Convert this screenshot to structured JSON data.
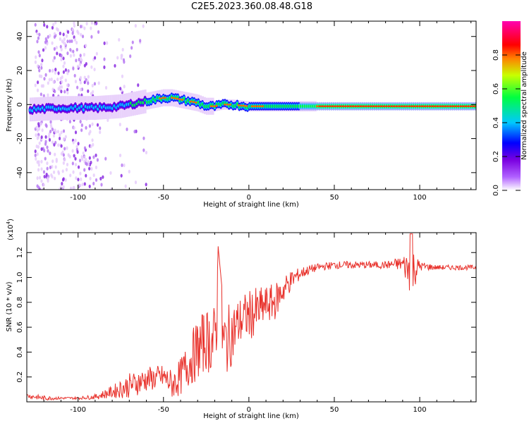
{
  "title": "C2E5.2023.360.08.48.G18",
  "chart_data": [
    {
      "type": "heatmap",
      "xlabel": "Height of straight line (km)",
      "ylabel": "Frequency (Hz)",
      "xlim": [
        -130,
        133
      ],
      "ylim": [
        -50,
        49
      ],
      "x_ticks": [
        -100,
        -50,
        0,
        50,
        100
      ],
      "y_ticks": [
        -40,
        -20,
        0,
        20,
        40
      ],
      "ridge": {
        "x": [
          -130,
          -110,
          -90,
          -75,
          -65,
          -55,
          -50,
          -45,
          -40,
          -35,
          -30,
          -25,
          -20,
          -15,
          -10,
          0,
          10,
          20,
          30,
          40,
          60,
          80,
          100,
          133
        ],
        "frequency": [
          -3,
          -2,
          -2,
          -1,
          1,
          3,
          4,
          4,
          3,
          2,
          1,
          -1,
          -1,
          0,
          0,
          -1,
          -1,
          -1,
          -1,
          -1,
          -1,
          -1,
          -1,
          -1
        ]
      },
      "colorbar": {
        "label": "Normalized spectral amplitude",
        "ticks": [
          0.0,
          0.2,
          0.4,
          0.6,
          0.8
        ],
        "range": [
          0,
          1
        ],
        "colormap": [
          "#ffffff",
          "#8b00ff",
          "#0000ff",
          "#00ffff",
          "#00ff00",
          "#ffff00",
          "#ff0000",
          "#ff00ff"
        ]
      }
    },
    {
      "type": "line",
      "xlabel": "Height of straight line (km)",
      "ylabel": "SNR (10 * v/v)",
      "y_multiplier": "(x10",
      "y_multiplier_exp": "4",
      "y_multiplier_close": ")",
      "xlim": [
        -130,
        133
      ],
      "ylim": [
        0.0,
        1.36
      ],
      "x_ticks": [
        -100,
        -50,
        0,
        50,
        100
      ],
      "y_ticks": [
        0.2,
        0.4,
        0.6,
        0.8,
        1.0,
        1.2
      ],
      "color": "#e8302a",
      "series": [
        {
          "x": [
            -130,
            -120,
            -110,
            -100,
            -90,
            -80,
            -70,
            -60,
            -50,
            -45,
            -40,
            -35,
            -30,
            -25,
            -20,
            -18,
            -15,
            -10,
            -5,
            0,
            5,
            10,
            15,
            20,
            25,
            30,
            35,
            40,
            50,
            60,
            70,
            80,
            90,
            95,
            100,
            110,
            120,
            133
          ],
          "values": [
            0.05,
            0.03,
            0.03,
            0.03,
            0.04,
            0.08,
            0.13,
            0.18,
            0.2,
            0.14,
            0.2,
            0.32,
            0.42,
            0.5,
            0.48,
            0.9,
            0.45,
            0.55,
            0.65,
            0.7,
            0.72,
            0.78,
            0.8,
            0.9,
            0.98,
            1.03,
            1.06,
            1.08,
            1.1,
            1.1,
            1.1,
            1.1,
            1.11,
            1.05,
            1.09,
            1.08,
            1.08,
            1.08
          ],
          "noise": [
            0.02,
            0.02,
            0.01,
            0.01,
            0.02,
            0.05,
            0.1,
            0.1,
            0.1,
            0.12,
            0.15,
            0.2,
            0.25,
            0.25,
            0.3,
            0.4,
            0.3,
            0.25,
            0.2,
            0.2,
            0.2,
            0.15,
            0.15,
            0.12,
            0.08,
            0.05,
            0.04,
            0.03,
            0.03,
            0.03,
            0.03,
            0.03,
            0.06,
            0.22,
            0.04,
            0.02,
            0.02,
            0.02
          ]
        }
      ]
    }
  ]
}
